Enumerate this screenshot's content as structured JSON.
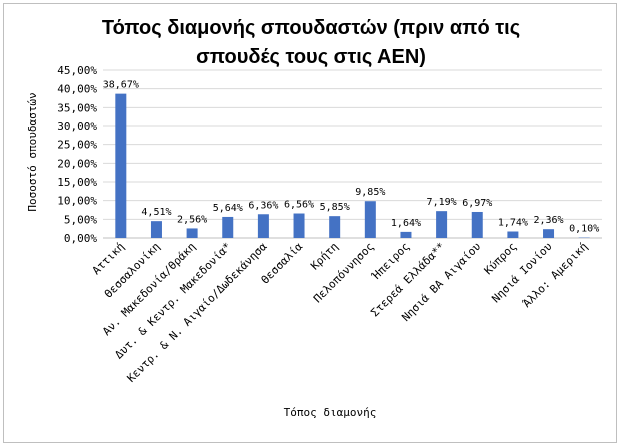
{
  "chart_data": {
    "type": "bar",
    "title_lines": [
      "Τόπος διαμονής σπουδαστών (πριν από τις",
      "σπουδές τους στις ΑΕΝ)"
    ],
    "xlabel": "Τόπος διαμονής",
    "ylabel": "Ποσοστό σπουδαστών",
    "ylim": [
      0,
      45
    ],
    "ytick_step": 5,
    "ytick_labels": [
      "0,00%",
      "5,00%",
      "10,00%",
      "15,00%",
      "20,00%",
      "25,00%",
      "30,00%",
      "35,00%",
      "40,00%",
      "45,00%"
    ],
    "grid": true,
    "bar_color": "#4472c4",
    "categories": [
      "Αττική",
      "Θεσσαλονίκη",
      "Αν. Μακεδονία/Θράκη",
      "Δυτ. & Κεντρ. Μακεδονία*",
      "Κεντρ. & Ν. Αιγαίο/Δωδεκάνησα",
      "Θεσσαλία",
      "Κρήτη",
      "Πελοπόννησος",
      "Ήπειρος",
      "Στερεά Ελλάδα**",
      "Νησιά ΒΑ Αιγαίου",
      "Κύπρος",
      "Νησιά Ιονίου",
      "Άλλο: Αμερική"
    ],
    "values": [
      38.67,
      4.51,
      2.56,
      5.64,
      6.36,
      6.56,
      5.85,
      9.85,
      1.64,
      7.19,
      6.97,
      1.74,
      2.36,
      0.1
    ],
    "value_labels": [
      "38,67%",
      "4,51%",
      "2,56%",
      "5,64%",
      "6,36%",
      "6,56%",
      "5,85%",
      "9,85%",
      "1,64%",
      "7,19%",
      "6,97%",
      "1,74%",
      "2,36%",
      "0,10%"
    ]
  }
}
